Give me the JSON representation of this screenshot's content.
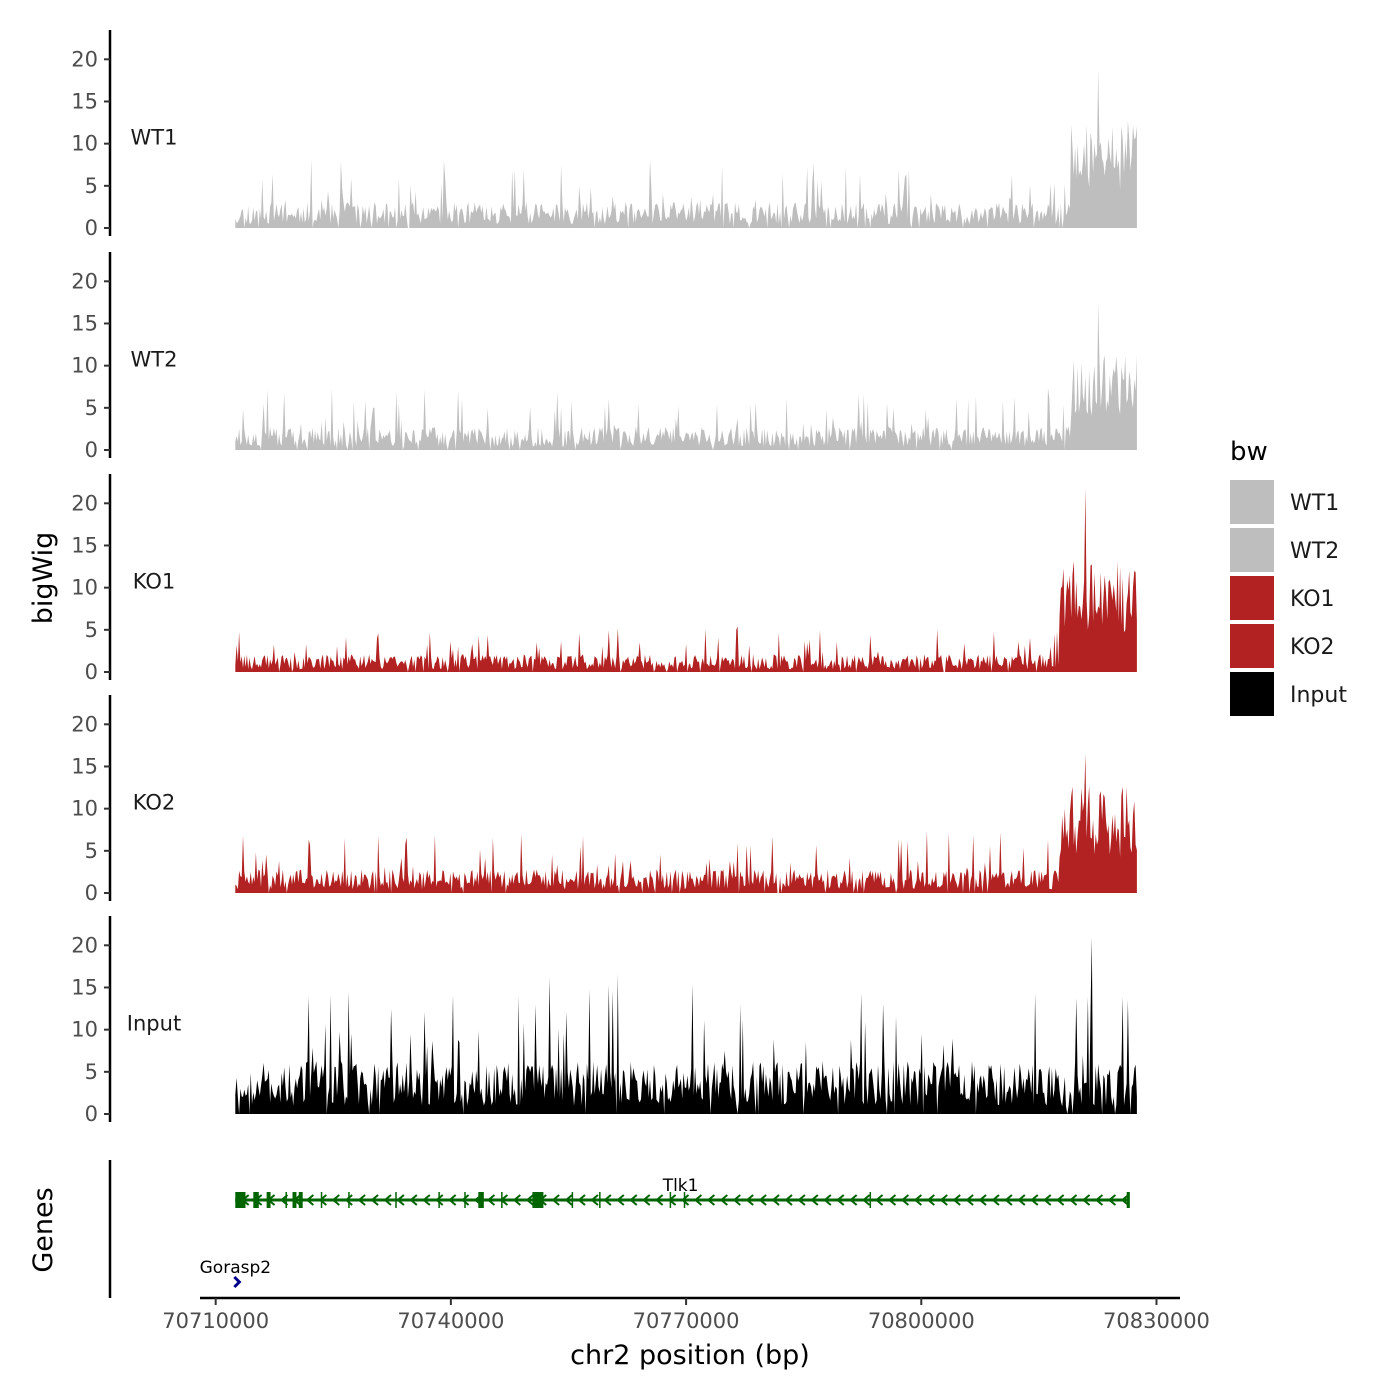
{
  "chart_data": {
    "type": "area",
    "title": "",
    "xlabel": "chr2 position (bp)",
    "ylabel": "bigWig",
    "genes_label": "Genes",
    "xlim": [
      70708000,
      70833000
    ],
    "x_ticks": [
      70710000,
      70740000,
      70770000,
      70800000,
      70830000
    ],
    "x_tick_labels": [
      "70710000",
      "70740000",
      "70770000",
      "70800000",
      "70830000"
    ],
    "ylim": [
      0,
      23
    ],
    "y_ticks": [
      0,
      5,
      10,
      15,
      20
    ],
    "y_tick_labels": [
      "0",
      "5",
      "10",
      "15",
      "20"
    ],
    "data_range": [
      70712500,
      70827500
    ],
    "tracks": [
      {
        "name": "WT1",
        "color": "#BEBEBE",
        "baseline": 2.2,
        "peak_start": 70819000,
        "peak_level": 8.5,
        "max": 18.8,
        "seed": 11
      },
      {
        "name": "WT2",
        "color": "#BEBEBE",
        "baseline": 2.0,
        "peak_start": 70819000,
        "peak_level": 7.5,
        "max": 17.5,
        "seed": 23
      },
      {
        "name": "KO1",
        "color": "#B22222",
        "baseline": 1.5,
        "peak_start": 70817500,
        "peak_level": 9.0,
        "max": 21.8,
        "seed": 37
      },
      {
        "name": "KO2",
        "color": "#B22222",
        "baseline": 2.0,
        "peak_start": 70817500,
        "peak_level": 8.5,
        "max": 16.5,
        "seed": 41
      },
      {
        "name": "Input",
        "color": "#000000",
        "baseline": 4.5,
        "peak_start": 70827600,
        "peak_level": 5.0,
        "max": 21.0,
        "seed": 53
      }
    ],
    "legend": {
      "title": "bw",
      "placement": "right",
      "entries": [
        {
          "label": "WT1",
          "color": "#BEBEBE"
        },
        {
          "label": "WT2",
          "color": "#BEBEBE"
        },
        {
          "label": "KO1",
          "color": "#B22222"
        },
        {
          "label": "KO2",
          "color": "#B22222"
        },
        {
          "label": "Input",
          "color": "#000000"
        }
      ]
    },
    "genes": [
      {
        "name": "Tlk1",
        "start": 70712500,
        "end": 70826500,
        "strand": "-",
        "color": "#006400",
        "exons": [
          [
            70712500,
            70713800
          ],
          [
            70714800,
            70715500
          ],
          [
            70716500,
            70717000
          ],
          [
            70719800,
            70720300
          ],
          [
            70720600,
            70721100
          ],
          [
            70743500,
            70744200
          ],
          [
            70750400,
            70751800
          ],
          [
            70826200,
            70826600
          ]
        ],
        "introns_marks": [
          70719000,
          70723500,
          70727000,
          70733000,
          70738500,
          70741800,
          70746500,
          70755500,
          70759000,
          70768000,
          70769800,
          70793500
        ]
      },
      {
        "name": "Gorasp2",
        "start": 70712000,
        "end": 70713200,
        "strand": "+",
        "color": "#00008B",
        "exons": []
      }
    ]
  }
}
